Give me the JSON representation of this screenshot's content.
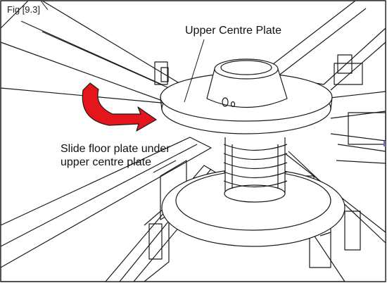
{
  "figure": {
    "label": "Fig [9.3]",
    "callouts": {
      "upper_centre_plate": "Upper Centre Plate",
      "instruction_line1": "Slide floor plate under",
      "instruction_line2": "upper centre plate"
    },
    "arrow_color": "#e4161b",
    "line_color": "#1a1a1a"
  }
}
